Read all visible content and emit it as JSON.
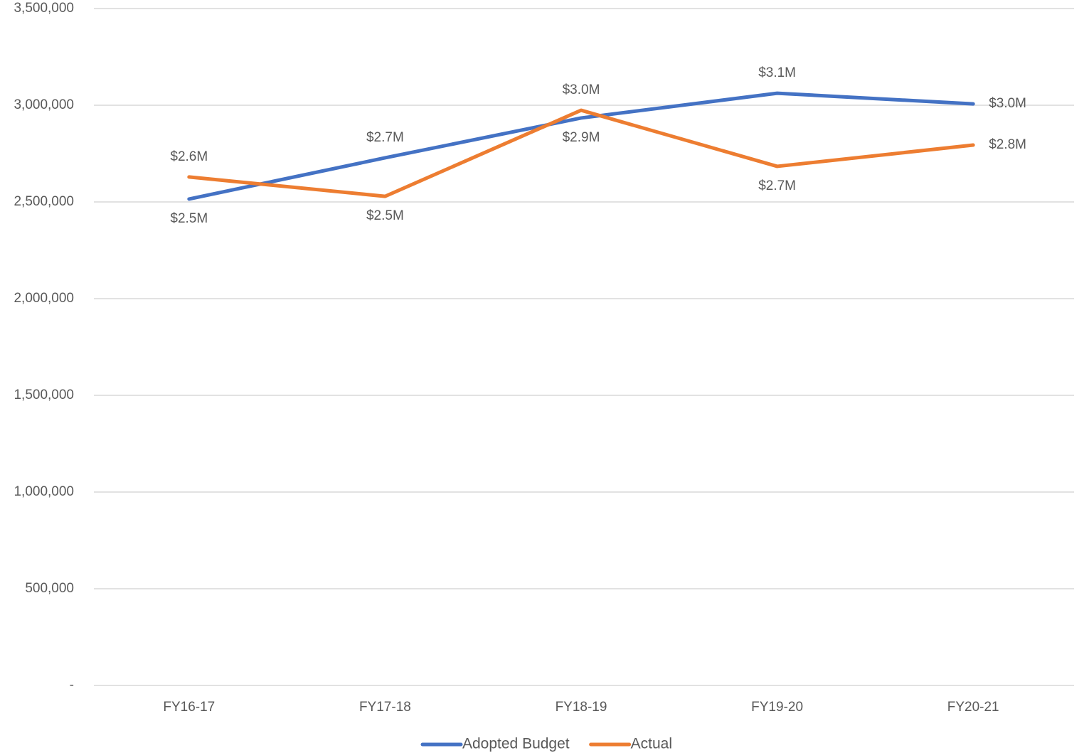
{
  "chart_data": {
    "type": "line",
    "categories": [
      "FY16-17",
      "FY17-18",
      "FY18-19",
      "FY19-20",
      "FY20-21"
    ],
    "series": [
      {
        "name": "Adopted Budget",
        "color": "#4472c4",
        "values": [
          2515000,
          2728000,
          2934000,
          3062000,
          3007000
        ],
        "value_labels": [
          "$2.5M",
          "$2.7M",
          "$2.9M",
          "$3.1M",
          "$3.0M"
        ]
      },
      {
        "name": "Actual",
        "color": "#ed7d31",
        "values": [
          2629000,
          2529000,
          2974000,
          2684000,
          2794000
        ],
        "value_labels": [
          "$2.6M",
          "$2.5M",
          "$3.0M",
          "$2.7M",
          "$2.8M"
        ]
      }
    ],
    "ylim": [
      0,
      3500000
    ],
    "yticks": [
      {
        "value": 0,
        "label": "-"
      },
      {
        "value": 500000,
        "label": "500,000"
      },
      {
        "value": 1000000,
        "label": "1,000,000"
      },
      {
        "value": 1500000,
        "label": "1,500,000"
      },
      {
        "value": 2000000,
        "label": "2,000,000"
      },
      {
        "value": 2500000,
        "label": "2,500,000"
      },
      {
        "value": 3000000,
        "label": "3,000,000"
      },
      {
        "value": 3500000,
        "label": "3,500,000"
      }
    ],
    "grid": true,
    "legend": "bottom"
  }
}
